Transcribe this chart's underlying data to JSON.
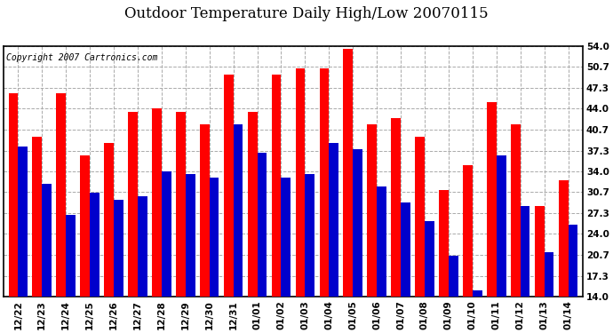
{
  "title": "Outdoor Temperature Daily High/Low 20070115",
  "copyright_text": "Copyright 2007 Cartronics.com",
  "dates": [
    "12/22",
    "12/23",
    "12/24",
    "12/25",
    "12/26",
    "12/27",
    "12/28",
    "12/29",
    "12/30",
    "12/31",
    "01/01",
    "01/02",
    "01/03",
    "01/04",
    "01/05",
    "01/06",
    "01/07",
    "01/08",
    "01/09",
    "01/10",
    "01/11",
    "01/12",
    "01/13",
    "01/14"
  ],
  "highs": [
    46.5,
    39.5,
    46.5,
    36.5,
    38.5,
    43.5,
    44.0,
    43.5,
    41.5,
    49.5,
    43.5,
    49.5,
    50.5,
    50.5,
    53.5,
    41.5,
    42.5,
    39.5,
    31.0,
    35.0,
    45.0,
    41.5,
    28.5,
    32.5
  ],
  "lows": [
    38.0,
    32.0,
    27.0,
    30.5,
    29.5,
    30.0,
    34.0,
    33.5,
    33.0,
    41.5,
    37.0,
    33.0,
    33.5,
    38.5,
    37.5,
    31.5,
    29.0,
    26.0,
    20.5,
    15.0,
    36.5,
    28.5,
    21.0,
    25.5
  ],
  "high_color": "#ff0000",
  "low_color": "#0000cc",
  "background_color": "#ffffff",
  "plot_background": "#ffffff",
  "grid_color": "#aaaaaa",
  "y_ticks": [
    14.0,
    17.3,
    20.7,
    24.0,
    27.3,
    30.7,
    34.0,
    37.3,
    40.7,
    44.0,
    47.3,
    50.7,
    54.0
  ],
  "ylim": [
    14.0,
    54.0
  ],
  "ybase": 14.0,
  "title_fontsize": 12,
  "copyright_fontsize": 7,
  "tick_fontsize": 7.5
}
